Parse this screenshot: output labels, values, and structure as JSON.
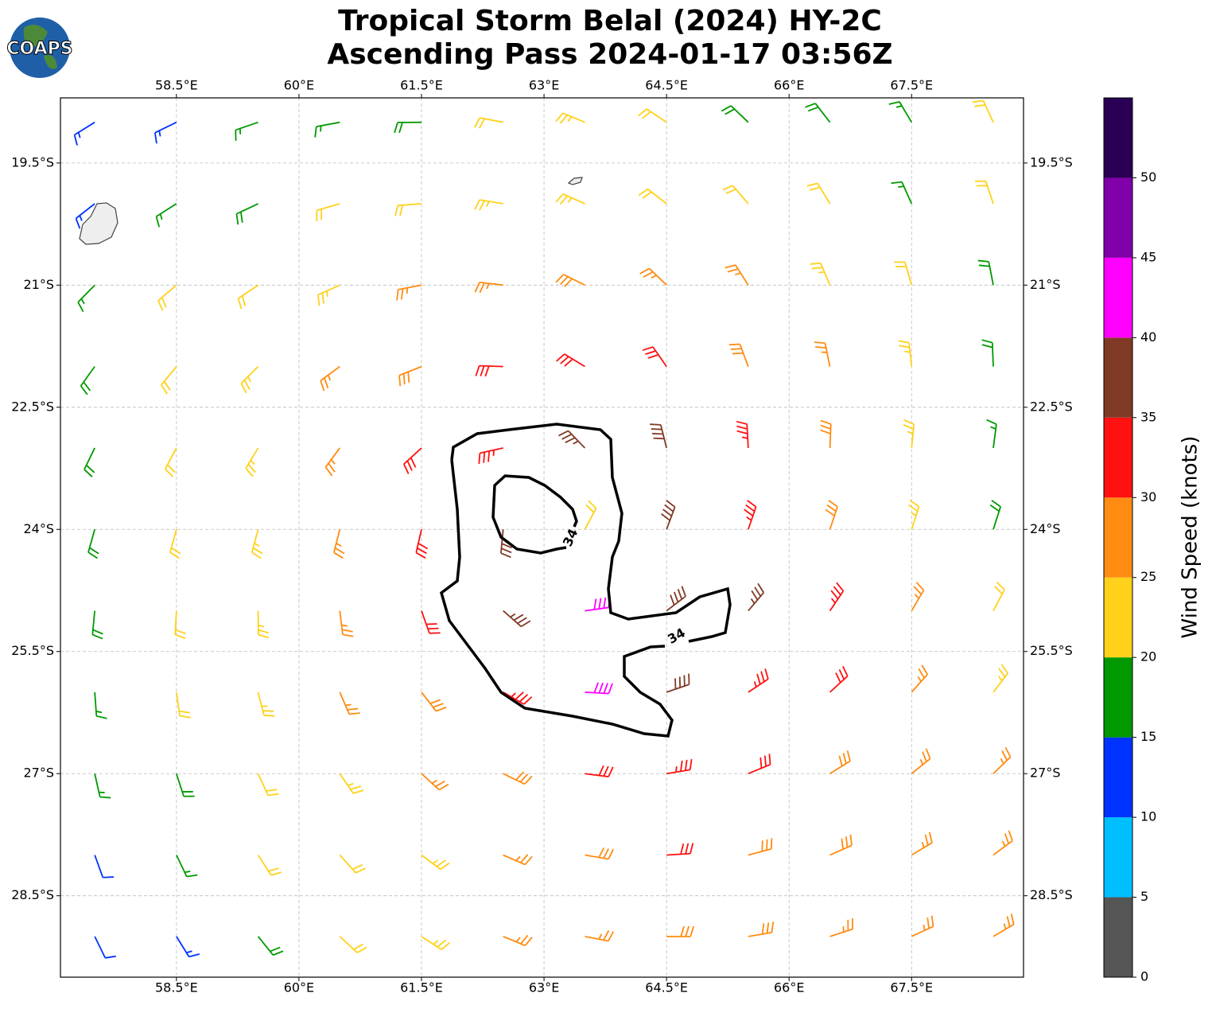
{
  "title": [
    "Tropical Storm Belal (2024) HY-2C",
    "Ascending Pass 2024-01-17 03:56Z"
  ],
  "logo": "COAPS",
  "map": {
    "lonlim": [
      57.08,
      68.87
    ],
    "latlim": [
      -29.5,
      -18.7
    ],
    "grid": true,
    "lon_ticks": [
      {
        "value": 58.5,
        "label": "58.5°E"
      },
      {
        "value": 60,
        "label": "60°E"
      },
      {
        "value": 61.5,
        "label": "61.5°E"
      },
      {
        "value": 63,
        "label": "63°E"
      },
      {
        "value": 64.5,
        "label": "64.5°E"
      },
      {
        "value": 66,
        "label": "66°E"
      },
      {
        "value": 67.5,
        "label": "67.5°E"
      }
    ],
    "lat_ticks": [
      {
        "value": -19.5,
        "label": "19.5°S"
      },
      {
        "value": -21,
        "label": "21°S"
      },
      {
        "value": -22.5,
        "label": "22.5°S"
      },
      {
        "value": -24,
        "label": "24°S"
      },
      {
        "value": -25.5,
        "label": "25.5°S"
      },
      {
        "value": -27,
        "label": "27°S"
      },
      {
        "value": -28.5,
        "label": "28.5°S"
      }
    ]
  },
  "wind": {
    "center": [
      63.0,
      -23.9
    ],
    "lons": [
      57.5,
      58.5,
      59.5,
      60.5,
      61.5,
      62.5,
      63.5,
      64.5,
      65.5,
      66.5,
      67.5,
      68.5
    ],
    "lats": [
      -19,
      -20,
      -21,
      -22,
      -23,
      -24,
      -25,
      -26,
      -27,
      -28,
      -29
    ],
    "speed": [
      [
        13,
        13,
        16,
        17,
        18,
        22,
        23,
        22,
        18,
        18,
        17,
        22
      ],
      [
        14,
        17,
        19,
        20,
        22,
        23,
        23,
        22,
        22,
        20,
        17,
        22
      ],
      [
        17,
        20,
        22,
        23,
        26,
        27,
        28,
        27,
        26,
        24,
        22,
        18
      ],
      [
        18,
        21,
        23,
        26,
        28,
        30,
        31,
        31,
        28,
        26,
        23,
        18
      ],
      [
        18,
        21,
        24,
        27,
        30,
        34,
        37,
        38,
        33,
        28,
        24,
        17
      ],
      [
        18,
        21,
        23,
        26,
        30,
        37,
        22,
        38,
        33,
        28,
        24,
        18
      ],
      [
        18,
        20,
        23,
        26,
        30,
        37,
        42,
        38,
        36,
        33,
        27,
        22
      ],
      [
        17,
        20,
        23,
        26,
        28,
        33,
        40,
        38,
        34,
        30,
        27,
        24
      ],
      [
        15,
        18,
        22,
        24,
        26,
        29,
        32,
        34,
        32,
        29,
        27,
        26
      ],
      [
        12,
        17,
        20,
        22,
        24,
        26,
        28,
        30,
        29,
        28,
        27,
        26
      ],
      [
        10,
        13,
        18,
        21,
        23,
        25,
        27,
        28,
        28,
        27,
        26,
        26
      ]
    ]
  },
  "colorbar": {
    "label": "Wind Speed (knots)",
    "lim": [
      0,
      55
    ],
    "bounds": [
      0,
      5,
      10,
      15,
      20,
      25,
      30,
      35,
      40,
      45,
      50,
      55
    ],
    "colors": [
      "#555555",
      "#00bfff",
      "#0033ff",
      "#009900",
      "#ffd11a",
      "#ff8c11",
      "#ff1111",
      "#803a26",
      "#ff00ff",
      "#8000aa",
      "#2a0055"
    ],
    "ticks": [
      0,
      5,
      10,
      15,
      20,
      25,
      30,
      35,
      40,
      45,
      50
    ]
  },
  "contour": {
    "level": 34
  }
}
